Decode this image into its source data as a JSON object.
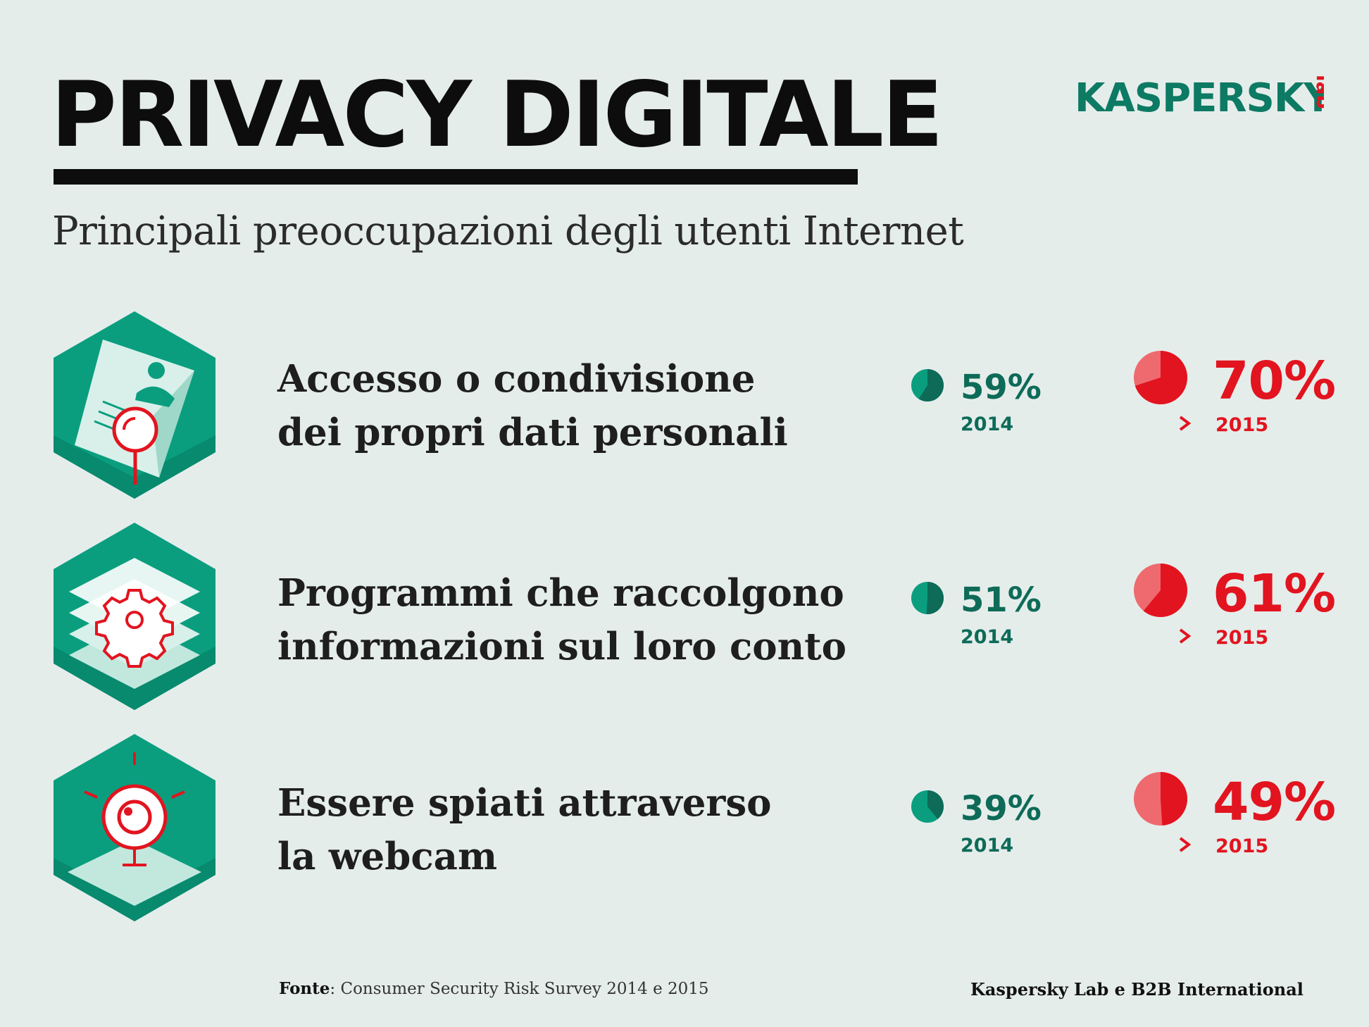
{
  "header": {
    "title": "PRIVACY DIGITALE",
    "subtitle": "Principali preoccupazioni degli utenti Internet",
    "logo_text": "KASPERSKY",
    "logo_suffix": "lab"
  },
  "colors": {
    "teal": "#0a9e7f",
    "teal_dark": "#0d6b58",
    "red": "#e2141f",
    "red_light": "#ee6a6f",
    "background": "#e5edeb"
  },
  "chart_data": {
    "type": "pie",
    "years": [
      "2014",
      "2015"
    ],
    "items": [
      {
        "label_line1": "Accesso o condivisione",
        "label_line2": "dei propri dati personali",
        "icon": "id-card-search-icon",
        "year_old": "2014",
        "year_new": "2015",
        "value_old": 59,
        "value_new": 70,
        "value_old_label": "59%",
        "value_new_label": "70%"
      },
      {
        "label_line1": "Programmi che raccolgono",
        "label_line2": "informazioni sul loro conto",
        "icon": "layers-gear-icon",
        "year_old": "2014",
        "year_new": "2015",
        "value_old": 51,
        "value_new": 61,
        "value_old_label": "51%",
        "value_new_label": "61%"
      },
      {
        "label_line1": "Essere spiati attraverso",
        "label_line2": "la webcam",
        "icon": "webcam-icon",
        "year_old": "2014",
        "year_new": "2015",
        "value_old": 39,
        "value_new": 49,
        "value_old_label": "39%",
        "value_new_label": "49%"
      }
    ]
  },
  "footer": {
    "source_label": "Fonte",
    "source_text": ": Consumer Security Risk Survey 2014 e 2015",
    "credit": "Kaspersky Lab e B2B International"
  }
}
